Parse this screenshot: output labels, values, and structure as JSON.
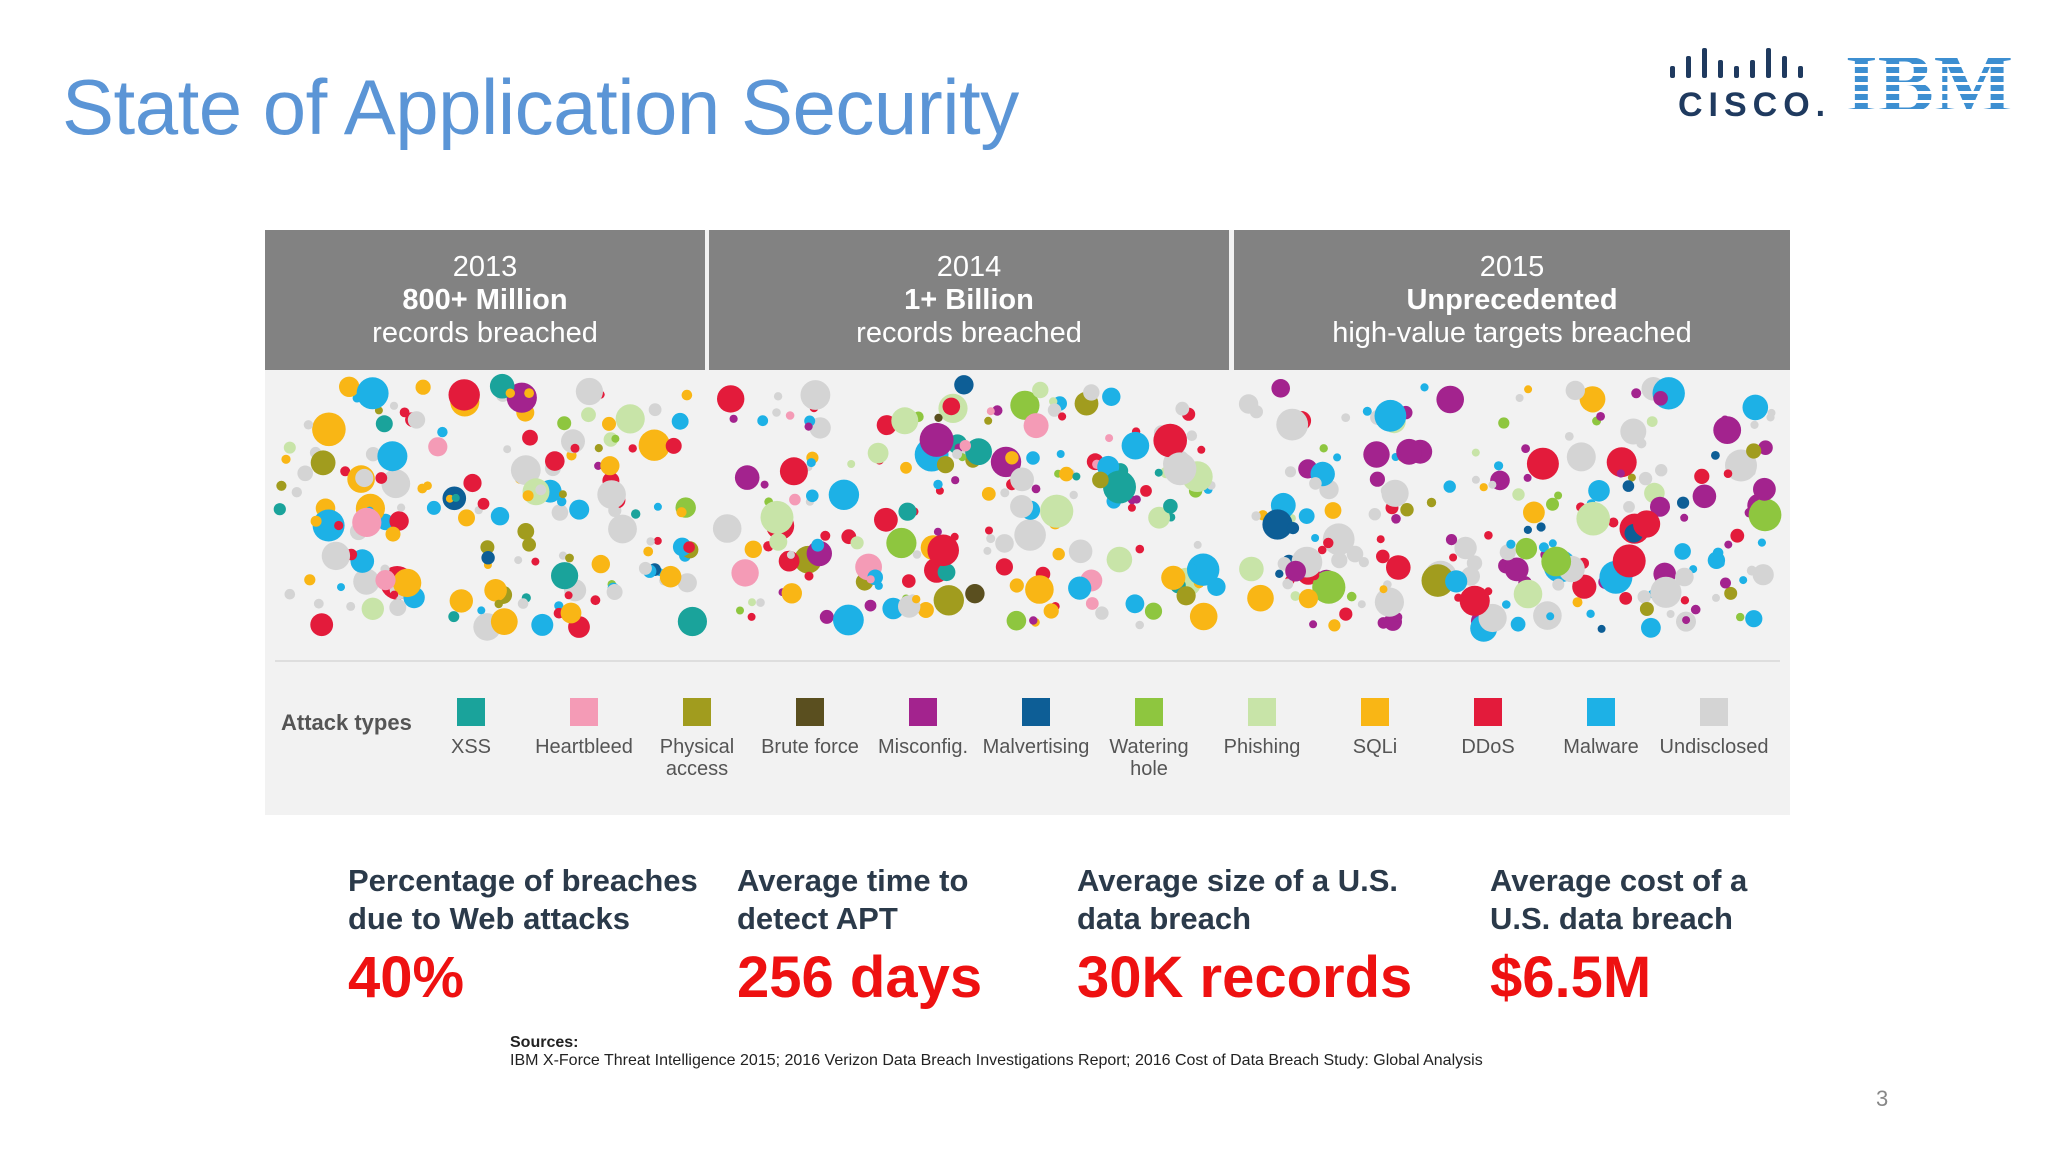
{
  "title": "State of Application Security",
  "logos": {
    "cisco": "CISCO.",
    "ibm": "IBM"
  },
  "years": [
    {
      "year": "2013",
      "headline": "800+ Million",
      "subtitle": "records breached"
    },
    {
      "year": "2014",
      "headline": "1+ Billion",
      "subtitle": "records breached"
    },
    {
      "year": "2015",
      "headline": "Unprecedented",
      "subtitle": "high-value targets breached"
    }
  ],
  "legend": {
    "title": "Attack types",
    "items": [
      {
        "label": "XSS",
        "color": "#1aa39b"
      },
      {
        "label": "Heartbleed",
        "color": "#f49bb6"
      },
      {
        "label": "Physical access",
        "color": "#a19c1e"
      },
      {
        "label": "Brute force",
        "color": "#5a4f1f"
      },
      {
        "label": "Misconfig.",
        "color": "#a3238e"
      },
      {
        "label": "Malvertising",
        "color": "#0d5e96"
      },
      {
        "label": "Watering hole",
        "color": "#8ec63f"
      },
      {
        "label": "Phishing",
        "color": "#c8e4a8"
      },
      {
        "label": "SQLi",
        "color": "#f9b615"
      },
      {
        "label": "DDoS",
        "color": "#e31b3b"
      },
      {
        "label": "Malware",
        "color": "#1db1e6"
      },
      {
        "label": "Undisclosed",
        "color": "#d4d4d4"
      }
    ]
  },
  "stats": [
    {
      "label": "Percentage of breaches due to Web attacks",
      "value": "40%"
    },
    {
      "label": "Average time to detect APT",
      "value": "256 days"
    },
    {
      "label": "Average size of a U.S. data breach",
      "value": "30K records"
    },
    {
      "label": "Average cost of a U.S. data breach",
      "value": "$6.5M"
    }
  ],
  "sources": {
    "label": "Sources:",
    "text": "IBM X-Force Threat Intelligence 2015; 2016 Verizon Data Breach Investigations Report; 2016 Cost of Data Breach Study: Global Analysis"
  },
  "page_number": "3"
}
